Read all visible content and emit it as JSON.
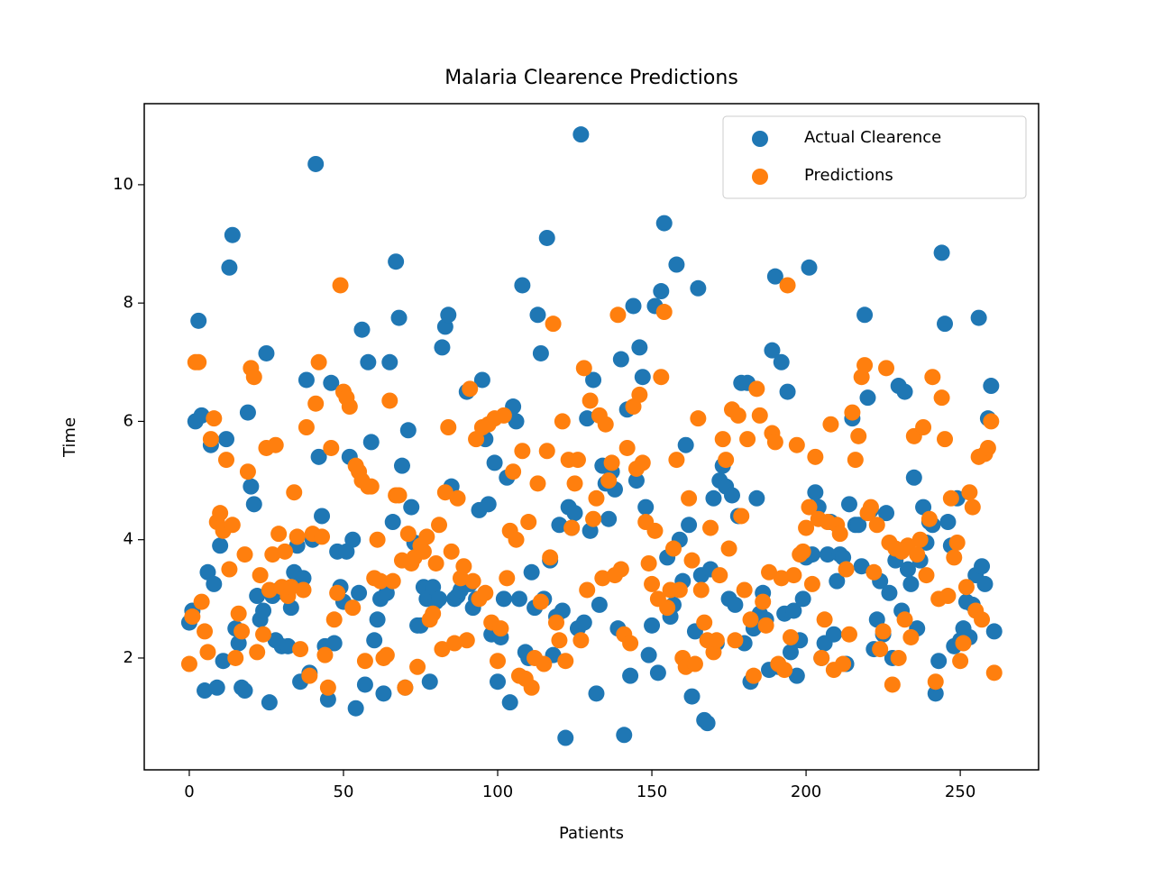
{
  "chart_data": {
    "type": "scatter",
    "title": "Malaria Clearence Predictions",
    "x_label": "Patients",
    "y_label": "Time",
    "x": [
      0,
      1,
      2,
      3,
      4,
      5,
      6,
      7,
      8,
      9,
      10,
      11,
      12,
      13,
      14,
      15,
      16,
      17,
      18,
      19,
      20,
      21,
      22,
      23,
      24,
      25,
      26,
      27,
      28,
      29,
      30,
      31,
      32,
      33,
      34,
      35,
      36,
      37,
      38,
      39,
      40,
      41,
      42,
      43,
      44,
      45,
      46,
      47,
      48,
      49,
      50,
      51,
      52,
      53,
      54,
      55,
      56,
      57,
      58,
      59,
      60,
      61,
      62,
      63,
      64,
      65,
      66,
      67,
      68,
      69,
      70,
      71,
      72,
      73,
      74,
      75,
      76,
      77,
      78,
      79,
      80,
      81,
      82,
      83,
      84,
      85,
      86,
      87,
      88,
      89,
      90,
      91,
      92,
      93,
      94,
      95,
      96,
      97,
      98,
      99,
      100,
      101,
      102,
      103,
      104,
      105,
      106,
      107,
      108,
      109,
      110,
      111,
      112,
      113,
      114,
      115,
      116,
      117,
      118,
      119,
      120,
      121,
      122,
      123,
      124,
      125,
      126,
      127,
      128,
      129,
      130,
      131,
      132,
      133,
      134,
      135,
      136,
      137,
      138,
      139,
      140,
      141,
      142,
      143,
      144,
      145,
      146,
      147,
      148,
      149,
      150,
      151,
      152,
      153,
      154,
      155,
      156,
      157,
      158,
      159,
      160,
      161,
      162,
      163,
      164,
      165,
      166,
      167,
      168,
      169,
      170,
      171,
      172,
      173,
      174,
      175,
      176,
      177,
      178,
      179,
      180,
      181,
      182,
      183,
      184,
      185,
      186,
      187,
      188,
      189,
      190,
      191,
      192,
      193,
      194,
      195,
      196,
      197,
      198,
      199,
      200,
      201,
      202,
      203,
      204,
      205,
      206,
      207,
      208,
      209,
      210,
      211,
      212,
      213,
      214,
      215,
      216,
      217,
      218,
      219,
      220,
      221,
      222,
      223,
      224,
      225,
      226,
      227,
      228,
      229,
      230,
      231,
      232,
      233,
      234,
      235,
      236,
      237,
      238,
      239,
      240,
      241,
      242,
      243,
      244,
      245,
      246,
      247,
      248,
      249,
      250,
      251,
      252,
      253,
      254,
      255,
      256,
      257,
      258,
      259,
      260,
      261
    ],
    "series": [
      {
        "name": "Actual Clearence",
        "color": "#1f77b4",
        "values": [
          2.6,
          2.8,
          6.0,
          7.7,
          6.1,
          1.45,
          3.45,
          5.6,
          3.25,
          1.5,
          3.9,
          1.95,
          5.7,
          8.6,
          9.15,
          2.5,
          2.25,
          1.5,
          1.45,
          6.15,
          4.9,
          4.6,
          3.05,
          2.65,
          2.8,
          7.15,
          1.25,
          3.05,
          2.3,
          3.15,
          2.2,
          3.1,
          2.2,
          2.85,
          3.45,
          3.9,
          1.6,
          3.35,
          6.7,
          1.75,
          4.0,
          10.35,
          5.4,
          4.4,
          2.2,
          1.3,
          6.65,
          2.25,
          3.8,
          3.2,
          2.95,
          3.8,
          5.4,
          4.0,
          1.15,
          3.1,
          7.55,
          1.55,
          7.0,
          5.65,
          2.3,
          2.65,
          3.0,
          1.4,
          3.1,
          7.0,
          4.3,
          8.7,
          7.75,
          5.25,
          1.5,
          5.85,
          4.55,
          3.95,
          2.55,
          2.55,
          3.2,
          3.0,
          1.6,
          3.2,
          2.95,
          3.0,
          7.25,
          7.6,
          7.8,
          4.9,
          3.0,
          3.05,
          3.15,
          3.25,
          6.5,
          3.25,
          2.85,
          3.0,
          4.5,
          6.7,
          5.7,
          4.6,
          2.4,
          5.3,
          1.6,
          2.35,
          3.0,
          5.05,
          1.25,
          6.25,
          6.0,
          3.0,
          8.3,
          2.1,
          2.0,
          3.45,
          2.85,
          7.8,
          7.15,
          3.0,
          9.1,
          3.65,
          2.05,
          2.7,
          4.25,
          2.8,
          0.65,
          4.55,
          4.2,
          4.45,
          2.5,
          10.85,
          2.6,
          6.05,
          4.15,
          6.7,
          1.4,
          2.9,
          5.25,
          4.95,
          4.35,
          5.15,
          4.85,
          2.5,
          7.05,
          0.7,
          6.2,
          1.7,
          7.95,
          5.0,
          7.25,
          6.75,
          4.55,
          2.05,
          2.55,
          7.95,
          1.75,
          8.2,
          9.35,
          3.7,
          2.7,
          2.9,
          8.65,
          4.0,
          3.3,
          5.6,
          4.25,
          1.35,
          2.45,
          8.25,
          3.4,
          0.95,
          0.9,
          3.5,
          4.7,
          2.25,
          5.0,
          5.25,
          4.9,
          3.0,
          4.75,
          2.9,
          4.4,
          6.65,
          2.25,
          6.65,
          1.6,
          2.5,
          4.7,
          2.75,
          3.1,
          2.65,
          1.8,
          7.2,
          8.45,
          1.85,
          7.0,
          2.75,
          6.5,
          2.1,
          2.8,
          1.7,
          2.3,
          3.0,
          3.7,
          8.6,
          3.75,
          4.8,
          4.55,
          2.0,
          2.25,
          3.75,
          4.3,
          2.4,
          3.3,
          3.75,
          3.7,
          1.9,
          4.6,
          6.05,
          4.25,
          4.25,
          3.55,
          7.8,
          6.4,
          4.5,
          2.15,
          2.65,
          3.3,
          2.4,
          4.45,
          3.1,
          2.0,
          3.65,
          6.6,
          2.8,
          6.5,
          3.5,
          3.25,
          5.05,
          2.5,
          3.65,
          4.55,
          3.95,
          4.3,
          4.25,
          1.4,
          1.95,
          8.85,
          7.65,
          4.3,
          3.9,
          2.2,
          4.7,
          2.3,
          2.5,
          2.95,
          2.35,
          2.9,
          3.4,
          7.75,
          3.55,
          3.25,
          6.05,
          6.6,
          2.45
        ]
      },
      {
        "name": "Predictions",
        "color": "#ff7f0e",
        "values": [
          1.9,
          2.7,
          7.0,
          7.0,
          2.95,
          2.45,
          2.1,
          5.7,
          6.05,
          4.3,
          4.45,
          4.15,
          5.35,
          3.5,
          4.25,
          2.0,
          2.75,
          2.45,
          3.75,
          5.15,
          6.9,
          6.75,
          2.1,
          3.4,
          2.4,
          5.55,
          3.15,
          3.75,
          5.6,
          4.1,
          3.2,
          3.8,
          3.05,
          3.2,
          4.8,
          4.05,
          2.15,
          3.15,
          5.9,
          1.7,
          4.1,
          6.3,
          7.0,
          4.05,
          2.05,
          1.5,
          5.55,
          2.65,
          3.1,
          8.3,
          6.5,
          6.4,
          6.25,
          2.85,
          5.25,
          5.15,
          5.0,
          1.95,
          4.9,
          4.9,
          3.35,
          4.0,
          3.3,
          2.0,
          2.05,
          6.35,
          3.3,
          4.75,
          4.75,
          3.65,
          1.5,
          4.1,
          3.6,
          3.7,
          1.85,
          3.9,
          3.8,
          4.05,
          2.65,
          2.75,
          3.6,
          4.25,
          2.15,
          4.8,
          5.9,
          3.8,
          2.25,
          4.7,
          3.35,
          3.55,
          2.3,
          6.55,
          3.3,
          5.7,
          3.0,
          5.9,
          3.1,
          5.95,
          2.6,
          6.05,
          1.95,
          2.5,
          6.1,
          3.35,
          4.15,
          5.15,
          4.0,
          1.7,
          5.5,
          1.65,
          4.3,
          1.5,
          2.0,
          4.95,
          2.95,
          1.9,
          5.5,
          3.7,
          7.65,
          2.6,
          2.3,
          6.0,
          1.95,
          5.35,
          4.2,
          4.95,
          5.35,
          2.3,
          6.9,
          3.15,
          6.35,
          4.35,
          4.7,
          6.1,
          3.35,
          5.95,
          5.0,
          5.3,
          3.4,
          7.8,
          3.5,
          2.4,
          5.55,
          2.25,
          6.25,
          5.2,
          6.45,
          5.3,
          4.3,
          3.6,
          3.25,
          4.15,
          3.0,
          6.75,
          7.85,
          2.85,
          3.15,
          3.85,
          5.35,
          3.15,
          2.0,
          1.85,
          4.7,
          3.65,
          1.9,
          6.05,
          3.15,
          2.6,
          2.3,
          4.2,
          2.1,
          2.3,
          3.4,
          5.7,
          5.35,
          3.85,
          6.2,
          2.3,
          6.1,
          4.4,
          3.15,
          5.7,
          2.65,
          1.7,
          6.55,
          6.1,
          2.95,
          2.55,
          3.45,
          5.8,
          5.65,
          1.9,
          3.35,
          1.8,
          8.3,
          2.35,
          3.4,
          5.6,
          3.75,
          3.8,
          4.2,
          4.55,
          3.25,
          5.4,
          4.35,
          2.0,
          2.65,
          4.3,
          5.95,
          1.8,
          4.25,
          4.1,
          1.9,
          3.5,
          2.4,
          6.15,
          5.35,
          5.75,
          6.75,
          6.95,
          4.45,
          4.55,
          3.45,
          4.25,
          2.15,
          2.45,
          6.9,
          3.95,
          1.55,
          3.85,
          2.0,
          3.8,
          2.65,
          3.9,
          2.35,
          5.75,
          3.75,
          4.0,
          5.9,
          3.4,
          4.35,
          6.75,
          1.6,
          3.0,
          6.4,
          5.7,
          3.05,
          4.7,
          3.7,
          3.95,
          1.95,
          2.25,
          3.2,
          4.8,
          4.55,
          2.8,
          5.4,
          2.65,
          5.45,
          5.55,
          6.0,
          1.75
        ]
      }
    ],
    "xlim": [
      -14.6,
      275.4
    ],
    "ylim": [
      0.11,
      11.37
    ],
    "xticks": [
      0,
      50,
      100,
      150,
      200,
      250
    ],
    "yticks": [
      2,
      4,
      6,
      8,
      10
    ],
    "legend": "upper right"
  }
}
